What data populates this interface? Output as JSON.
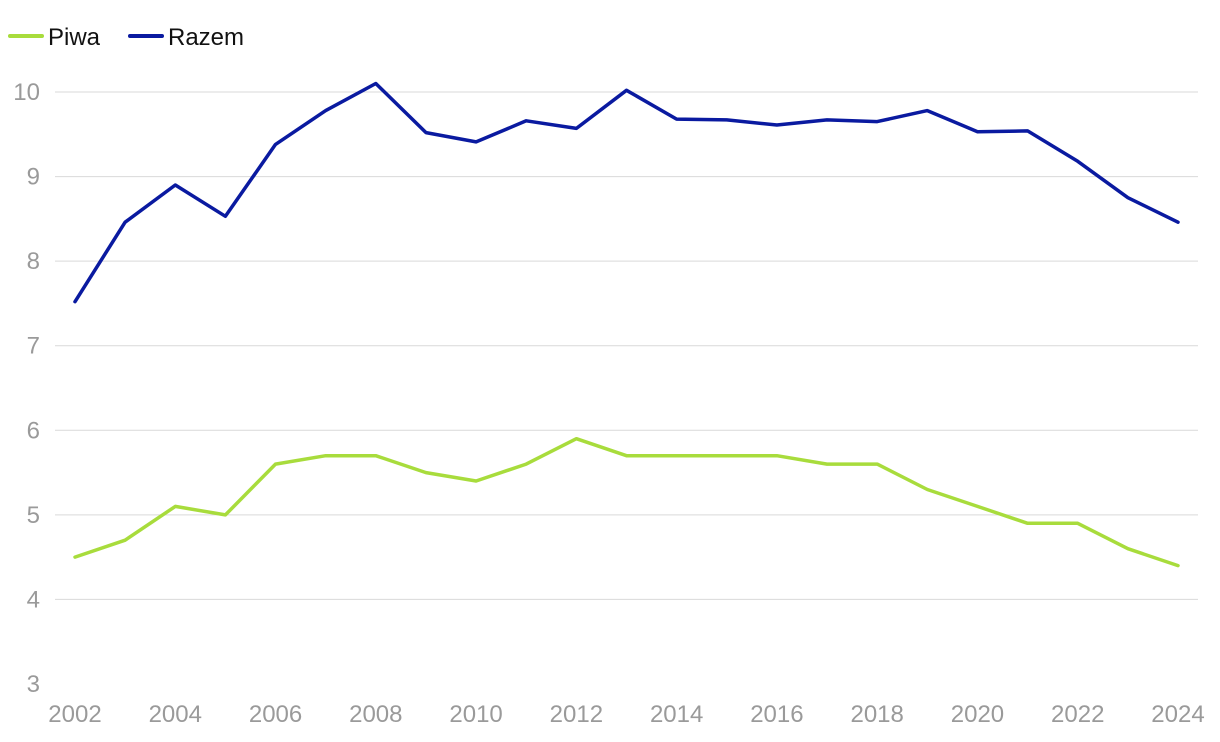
{
  "chart_data": {
    "type": "line",
    "title": "",
    "xlabel": "",
    "ylabel": "",
    "x": [
      2002,
      2003,
      2004,
      2005,
      2006,
      2007,
      2008,
      2009,
      2010,
      2011,
      2012,
      2013,
      2014,
      2015,
      2016,
      2017,
      2018,
      2019,
      2020,
      2021,
      2022,
      2023,
      2024
    ],
    "x_tick_labels": [
      "2002",
      "2004",
      "2006",
      "2008",
      "2010",
      "2012",
      "2014",
      "2016",
      "2018",
      "2020",
      "2022",
      "2024"
    ],
    "y_tick_labels": [
      "3",
      "4",
      "5",
      "6",
      "7",
      "8",
      "9",
      "10"
    ],
    "ylim": [
      3,
      10.1
    ],
    "xlim": [
      2002,
      2024
    ],
    "grid": "horizontal",
    "legend_position": "top-left",
    "series": [
      {
        "name": "Piwa",
        "color": "#a8dc3c",
        "values": [
          4.5,
          4.7,
          5.1,
          5.0,
          5.6,
          5.7,
          5.7,
          5.5,
          5.4,
          5.6,
          5.9,
          5.7,
          5.7,
          5.7,
          5.7,
          5.6,
          5.6,
          5.3,
          5.1,
          4.9,
          4.9,
          4.6,
          4.4
        ]
      },
      {
        "name": "Razem",
        "color": "#0a1aa0",
        "values": [
          7.52,
          8.46,
          8.9,
          8.53,
          9.38,
          9.78,
          10.1,
          9.52,
          9.41,
          9.66,
          9.57,
          10.02,
          9.68,
          9.67,
          9.61,
          9.67,
          9.65,
          9.78,
          9.53,
          9.54,
          9.18,
          8.75,
          8.46
        ]
      }
    ]
  }
}
